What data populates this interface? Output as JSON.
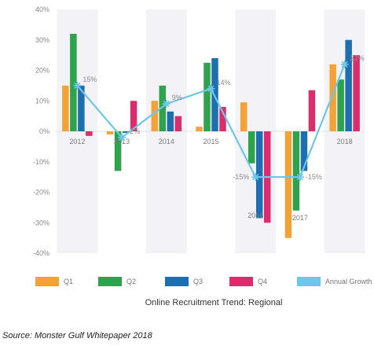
{
  "chart_data": {
    "type": "bar",
    "title": "Online Recruitment Trend: Regional",
    "categories": [
      "2012",
      "2013",
      "2014",
      "2015",
      "2016",
      "2017",
      "2018"
    ],
    "ylim": [
      -40,
      40
    ],
    "yticks": [
      -40,
      -30,
      -20,
      -10,
      0,
      10,
      20,
      30,
      40
    ],
    "ytick_labels": [
      "-40%",
      "-30%",
      "-20%",
      "-10%",
      "0%",
      "10%",
      "20%",
      "30%",
      "40%"
    ],
    "series": [
      {
        "name": "Q1",
        "values": [
          15,
          -1,
          10,
          1.5,
          9.5,
          -35,
          22
        ]
      },
      {
        "name": "Q2",
        "values": [
          32,
          -13,
          15,
          22.5,
          -10.5,
          -26,
          17
        ]
      },
      {
        "name": "Q3",
        "values": [
          15,
          -0.5,
          6.5,
          24,
          -28.5,
          -13,
          30
        ]
      },
      {
        "name": "Q4",
        "values": [
          -1.5,
          10,
          5,
          8,
          -30,
          13.5,
          25
        ]
      }
    ],
    "line_series": {
      "name": "Annual Growth",
      "values": [
        15,
        -2,
        9,
        14,
        -15,
        -15,
        22
      ],
      "labels": [
        "15%",
        "-2%",
        "9%",
        "14%",
        "-15%",
        "-15%",
        "22%"
      ]
    },
    "colors": {
      "Q1": "#f3a238",
      "Q2": "#2ea24c",
      "Q3": "#1d6fb0",
      "Q4": "#d92d6e",
      "Annual Growth": "#6ec6ea"
    },
    "grid": false,
    "legend_position": "bottom"
  },
  "source": "Source: Monster Gulf Whitepaper 2018"
}
